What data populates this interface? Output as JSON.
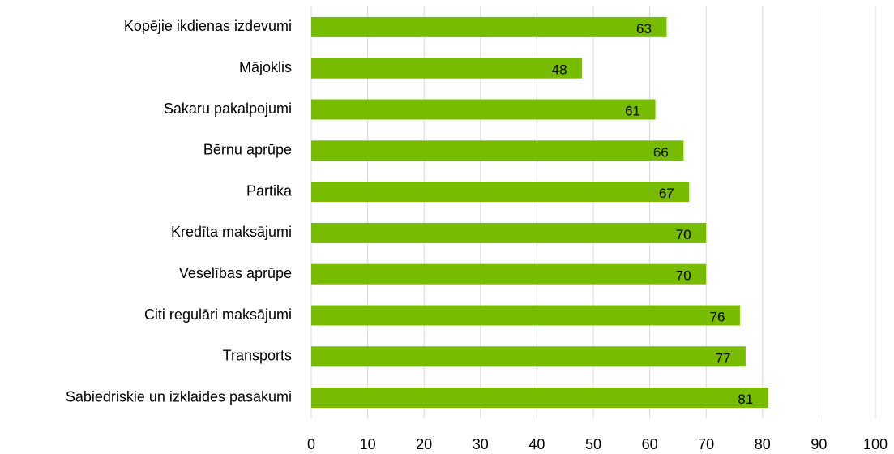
{
  "chart_data": {
    "type": "barh",
    "categories": [
      "Kopējie ikdienas izdevumi",
      "Mājoklis",
      "Sakaru pakalpojumi",
      "Bērnu aprūpe",
      "Pārtika",
      "Kredīta maksājumi",
      "Veselības aprūpe",
      "Citi regulāri maksājumi",
      "Transports",
      "Sabiedriskie un izklaides pasākumi"
    ],
    "values": [
      63,
      48,
      61,
      66,
      67,
      70,
      70,
      76,
      77,
      81
    ],
    "color": "#77bc00",
    "xlim": [
      0,
      100
    ],
    "xticks": [
      0,
      10,
      20,
      30,
      40,
      50,
      60,
      70,
      80,
      90,
      100
    ],
    "grid": true
  }
}
